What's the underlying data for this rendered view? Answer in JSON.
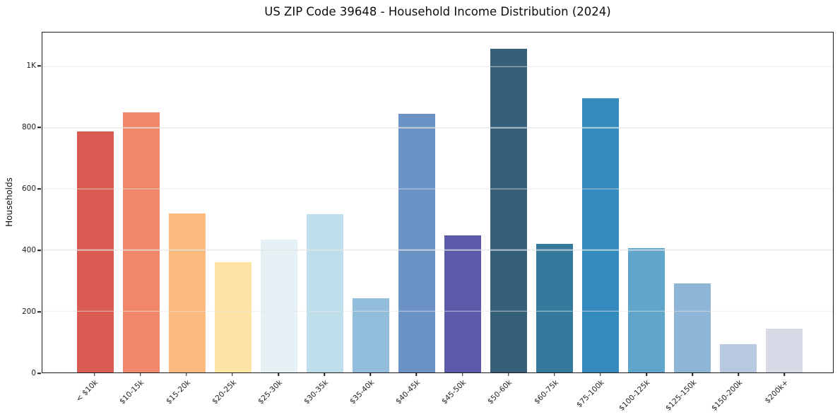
{
  "chart_data": {
    "type": "bar",
    "title": "US ZIP Code 39648 - Household Income Distribution (2024)",
    "xlabel": "",
    "ylabel": "Households",
    "categories": [
      "< $10k",
      "$10-15k",
      "$15-20k",
      "$20-25k",
      "$25-30k",
      "$30-35k",
      "$35-40k",
      "$40-45k",
      "$45-50k",
      "$50-60k",
      "$60-75k",
      "$75-100k",
      "$100-125k",
      "$125-150k",
      "$150-200k",
      "$200k+"
    ],
    "values": [
      788,
      851,
      520,
      361,
      434,
      517,
      242,
      845,
      449,
      1058,
      421,
      897,
      406,
      291,
      92,
      144
    ],
    "bar_colors": [
      "#d95b52",
      "#f0876a",
      "#fcba7e",
      "#fde3a4",
      "#e6f1f6",
      "#bfdeeb",
      "#92bddb",
      "#6b93c5",
      "#5b5aa9",
      "#36607a",
      "#357a9c",
      "#358bbd",
      "#60a6ca",
      "#8eb4d6",
      "#b7c8df",
      "#d7d9e7"
    ],
    "ylim": [
      0,
      1111
    ],
    "yticks": [
      {
        "value": 0,
        "label": "0"
      },
      {
        "value": 200,
        "label": "200"
      },
      {
        "value": 400,
        "label": "400"
      },
      {
        "value": 600,
        "label": "600"
      },
      {
        "value": 800,
        "label": "800"
      },
      {
        "value": 1000,
        "label": "1K"
      }
    ],
    "grid": "horizontal-only",
    "legend": "none"
  }
}
